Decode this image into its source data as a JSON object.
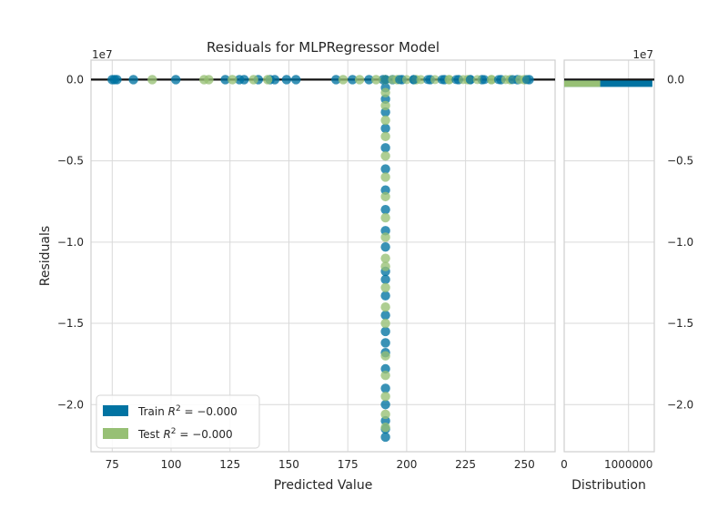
{
  "chart_data": [
    {
      "type": "scatter",
      "title": "Residuals for MLPRegressor Model",
      "xlabel": "Predicted Value",
      "ylabel": "Residuals",
      "y_offset_label": "1e7",
      "xlim": [
        66,
        263
      ],
      "ylim": [
        -2.29,
        0.12
      ],
      "x_ticks": [
        75,
        100,
        125,
        150,
        175,
        200,
        225,
        250
      ],
      "y_ticks": [
        0.0,
        -0.5,
        -1.0,
        -1.5,
        -2.0
      ],
      "y_tick_labels": [
        "0.0",
        "−0.5",
        "−1.0",
        "−1.5",
        "−2.0"
      ],
      "grid": true,
      "zero_line": 0,
      "legend_position": "lower-left",
      "series": [
        {
          "name": "Train R² = −0.000",
          "legend_base": "Train ",
          "color": "#0173a2",
          "horizontal_x": [
            75,
            76,
            77,
            84,
            102,
            123,
            129,
            131,
            137,
            142,
            144,
            149,
            153,
            170,
            177,
            184,
            190,
            194,
            198,
            203,
            210,
            216,
            222,
            227,
            232,
            240,
            247,
            252
          ],
          "vertical_x": 191,
          "vertical_y": [
            0.0,
            -0.05,
            -0.12,
            -0.2,
            -0.3,
            -0.42,
            -0.55,
            -0.68,
            -0.8,
            -0.93,
            -1.03,
            -1.18,
            -1.23,
            -1.33,
            -1.45,
            -1.55,
            -1.62,
            -1.68,
            -1.78,
            -1.9,
            -2.0,
            -2.1,
            -2.15,
            -2.2
          ]
        },
        {
          "name": "Test R² = −0.000",
          "legend_base": "Test ",
          "color": "#97c075",
          "horizontal_x": [
            92,
            114,
            116,
            126,
            135,
            141,
            173,
            180,
            187,
            196,
            204,
            218,
            226,
            236,
            244,
            250
          ],
          "vertical_x": 191,
          "vertical_y": [
            0.0,
            -0.08,
            -0.16,
            -0.25,
            -0.35,
            -0.47,
            -0.6,
            -0.72,
            -0.85,
            -0.97,
            -1.1,
            -1.15,
            -1.28,
            -1.4,
            -1.5,
            -1.7,
            -1.82,
            -1.95,
            -2.06,
            -2.14
          ]
        }
      ]
    },
    {
      "type": "bar",
      "orientation": "horizontal",
      "xlabel": "Distribution",
      "x_ticks": [
        0,
        1000000
      ],
      "x_tick_labels": [
        "0",
        "1000000"
      ],
      "xlim": [
        0,
        1400000
      ],
      "y_offset_label": "1e7",
      "y_tick_labels": [
        "0.0",
        "−0.5",
        "−1.0",
        "−1.5",
        "−2.0"
      ],
      "bars": [
        {
          "series": "Train",
          "value": 1370000,
          "color": "#0173a2"
        },
        {
          "series": "Test",
          "value": 560000,
          "color": "#97c075"
        }
      ]
    }
  ]
}
